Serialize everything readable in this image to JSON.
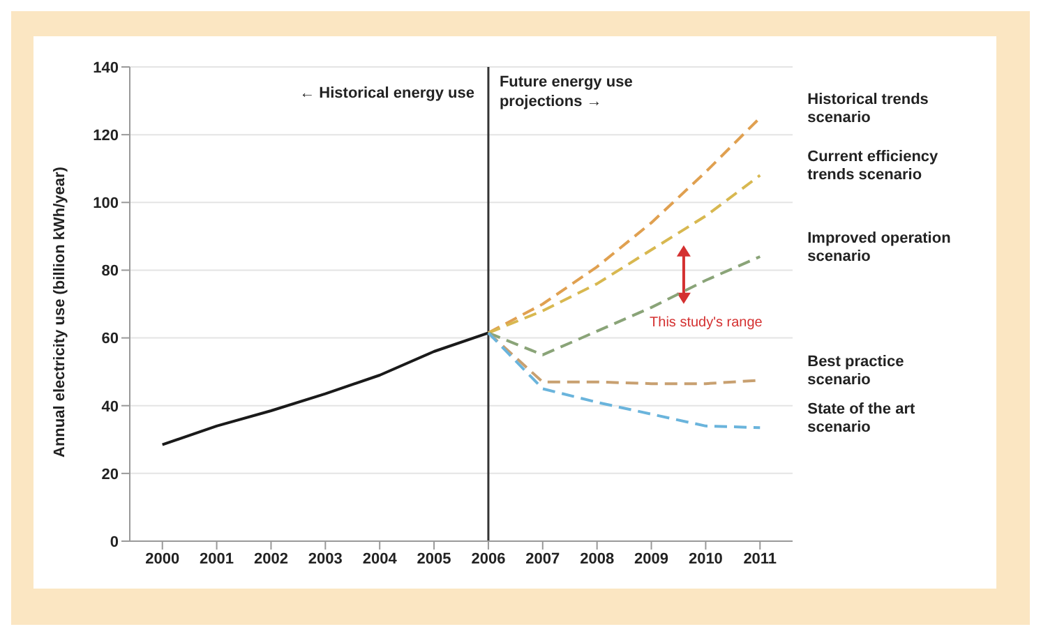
{
  "chart_data": {
    "type": "line",
    "ylabel": "Annual electricity use (billion kWh/year)",
    "xlim": [
      1999.4,
      2011.6
    ],
    "xticks": [
      2000,
      2001,
      2002,
      2003,
      2004,
      2005,
      2006,
      2007,
      2008,
      2009,
      2010,
      2011
    ],
    "ylim": [
      0,
      140
    ],
    "yticks": [
      0,
      20,
      40,
      60,
      80,
      100,
      120,
      140
    ],
    "grid": "y",
    "marker": "none",
    "series": [
      {
        "color": "#1a1a1a",
        "line_style": "solid",
        "x": [
          2000,
          2001,
          2002,
          2003,
          2004,
          2005,
          2006
        ],
        "values": [
          28.5,
          34,
          38.5,
          43.5,
          49,
          56,
          61.5
        ]
      },
      {
        "name": "Historical trends scenario",
        "color": "#e0a050",
        "line_style": "dashed",
        "x": [
          2006,
          2007,
          2008,
          2009,
          2010,
          2011
        ],
        "values": [
          61.5,
          70,
          81,
          94,
          109,
          125
        ]
      },
      {
        "name": "Current efficiency trends scenario",
        "color": "#d8b850",
        "line_style": "dashed",
        "x": [
          2006,
          2007,
          2008,
          2009,
          2010,
          2011
        ],
        "values": [
          61.5,
          68,
          76,
          86,
          96,
          108
        ]
      },
      {
        "name": "Improved operation scenario",
        "color": "#8aa478",
        "line_style": "dashed",
        "x": [
          2006,
          2007,
          2008,
          2009,
          2010,
          2011
        ],
        "values": [
          61.5,
          55,
          62,
          69,
          77,
          84
        ]
      },
      {
        "name": "Best practice scenario",
        "color": "#c8a070",
        "line_style": "dashed",
        "x": [
          2006,
          2007,
          2008,
          2009,
          2010,
          2011
        ],
        "values": [
          61.5,
          47,
          47,
          46.5,
          46.5,
          47.5
        ]
      },
      {
        "name": "State of the art scenario",
        "color": "#6ab4dc",
        "line_style": "dashed",
        "x": [
          2006,
          2007,
          2008,
          2009,
          2010,
          2011
        ],
        "values": [
          61.5,
          45,
          41,
          37.5,
          34,
          33.5
        ]
      }
    ],
    "ref_lines": [
      {
        "axis": "x",
        "value": 2006,
        "color": "#333333"
      }
    ],
    "annotations": [
      "← Historical energy use",
      "Future energy use projections →",
      "This study's range"
    ]
  }
}
